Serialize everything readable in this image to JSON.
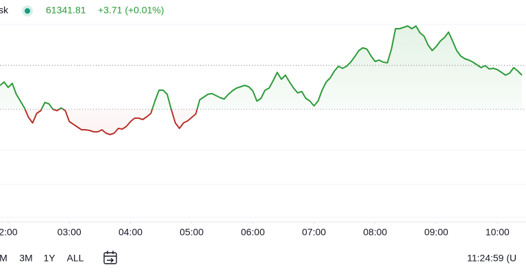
{
  "header": {
    "symbol": "sk",
    "price": "61341.81",
    "change": "+3.71 (+0.01%)"
  },
  "chart_data": {
    "type": "line",
    "x": [
      112,
      116,
      120,
      124,
      128,
      132,
      136,
      140,
      144,
      148,
      152,
      156,
      160,
      164,
      168,
      172,
      176,
      180,
      184,
      188,
      192,
      196,
      200,
      204,
      208,
      212,
      216,
      220,
      224,
      228,
      232,
      236,
      240,
      244,
      248,
      252,
      256,
      260,
      264,
      268,
      272,
      276,
      280,
      284,
      288,
      292,
      296,
      300,
      304,
      308,
      312,
      316,
      320,
      324,
      328,
      332,
      336,
      340,
      344,
      348,
      352,
      356,
      360,
      364,
      368,
      372,
      376,
      380,
      384,
      388,
      392,
      396,
      400,
      404,
      408,
      412,
      416,
      420,
      424,
      428,
      432,
      436,
      440,
      444,
      448,
      452,
      456,
      460,
      464,
      468,
      472,
      476,
      480,
      484,
      488,
      492,
      496,
      500,
      504,
      508,
      512,
      516,
      520,
      524,
      528,
      532,
      536,
      540,
      544,
      548,
      552,
      556,
      560,
      564,
      568,
      572,
      576,
      580,
      584,
      588,
      592,
      596,
      600,
      604,
      608,
      612,
      616,
      620,
      624
    ],
    "values": [
      61283,
      61293,
      61277,
      61289,
      61257,
      61237,
      61217,
      61189,
      61173,
      61201,
      61209,
      61233,
      61229,
      61213,
      61209,
      61217,
      61209,
      61177,
      61169,
      61161,
      61153,
      61153,
      61151,
      61147,
      61147,
      61153,
      61143,
      61139,
      61143,
      61157,
      61155,
      61163,
      61177,
      61187,
      61187,
      61183,
      61191,
      61201,
      61237,
      61269,
      61269,
      61257,
      61213,
      61173,
      61157,
      61173,
      61179,
      61189,
      61199,
      61241,
      61249,
      61257,
      61259,
      61253,
      61247,
      61243,
      61257,
      61267,
      61275,
      61279,
      61283,
      61279,
      61267,
      61237,
      61245,
      61269,
      61275,
      61297,
      61321,
      61301,
      61313,
      61293,
      61275,
      61261,
      61265,
      61245,
      61237,
      61223,
      61237,
      61269,
      61293,
      61305,
      61325,
      61339,
      61333,
      61339,
      61351,
      61367,
      61385,
      61393,
      61389,
      61369,
      61353,
      61357,
      61351,
      61349,
      61389,
      61449,
      61449,
      61453,
      61457,
      61449,
      61457,
      61437,
      61427,
      61401,
      61385,
      61397,
      61413,
      61423,
      61439,
      61413,
      61385,
      61369,
      61361,
      61357,
      61351,
      61343,
      61335,
      61341,
      61331,
      61333,
      61329,
      61321,
      61313,
      61319,
      61335,
      61325,
      61313
    ],
    "xlim": [
      112,
      628
    ],
    "ylim": [
      60883,
      61533
    ],
    "xticks": [
      {
        "value": 120,
        "label": "2:00"
      },
      {
        "value": 180,
        "label": "03:00"
      },
      {
        "value": 240,
        "label": "04:00"
      },
      {
        "value": 300,
        "label": "05:00"
      },
      {
        "value": 360,
        "label": "06:00"
      },
      {
        "value": 420,
        "label": "07:00"
      },
      {
        "value": 480,
        "label": "08:00"
      },
      {
        "value": 540,
        "label": "09:00"
      },
      {
        "value": 600,
        "label": "10:00"
      }
    ],
    "baseline": 61213,
    "price_line": 61341.81,
    "color_up": "#2b9a38",
    "color_down": "#b8302a"
  },
  "footer": {
    "ranges": [
      "M",
      "3M",
      "1Y",
      "ALL"
    ],
    "time": "11:24:59 (U"
  }
}
